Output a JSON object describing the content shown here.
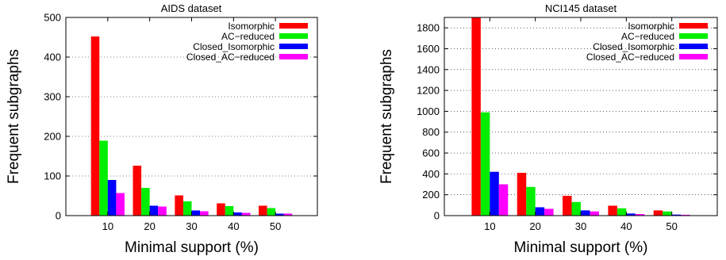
{
  "chart_data": [
    {
      "type": "bar",
      "title": "AIDS dataset",
      "xlabel": "Minimal support (%)",
      "ylabel": "Frequent subgraphs",
      "categories": [
        "10",
        "20",
        "30",
        "40",
        "50"
      ],
      "ylim": [
        0,
        500
      ],
      "yticks": [
        0,
        100,
        200,
        300,
        400,
        500
      ],
      "grid": true,
      "legend_position": "top-right",
      "series": [
        {
          "name": "Isomorphic",
          "color": "#ff0000",
          "values": [
            452,
            126,
            51,
            31,
            25
          ]
        },
        {
          "name": "AC−reduced",
          "color": "#00ee00",
          "values": [
            189,
            70,
            36,
            24,
            19
          ]
        },
        {
          "name": "Closed_Isomorphic",
          "color": "#0000ff",
          "values": [
            90,
            25,
            13,
            8,
            5
          ]
        },
        {
          "name": "Closed_AC−reduced",
          "color": "#ff00ff",
          "values": [
            57,
            23,
            11,
            7,
            5
          ]
        }
      ]
    },
    {
      "type": "bar",
      "title": "NCI145 dataset",
      "xlabel": "Minimal support (%)",
      "ylabel": "Frequent subgraphs",
      "categories": [
        "10",
        "20",
        "30",
        "40",
        "50"
      ],
      "ylim": [
        0,
        1900
      ],
      "yticks": [
        0,
        200,
        400,
        600,
        800,
        1000,
        1200,
        1400,
        1600,
        1800
      ],
      "grid": true,
      "legend_position": "top-right",
      "series": [
        {
          "name": "Isomorphic",
          "color": "#ff0000",
          "values": [
            1900,
            410,
            190,
            95,
            50
          ]
        },
        {
          "name": "AC−reduced",
          "color": "#00ee00",
          "values": [
            990,
            275,
            130,
            70,
            40
          ]
        },
        {
          "name": "Closed_Isomorphic",
          "color": "#0000ff",
          "values": [
            420,
            80,
            50,
            20,
            10
          ]
        },
        {
          "name": "Closed_AC−reduced",
          "color": "#ff00ff",
          "values": [
            300,
            65,
            40,
            15,
            8
          ]
        }
      ]
    }
  ]
}
